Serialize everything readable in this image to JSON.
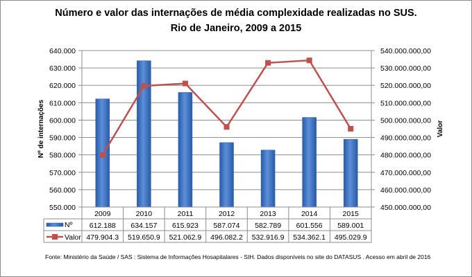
{
  "chart_data": {
    "type": "bar+line",
    "title": "Número e valor das internações de média complexidade realizadas no SUS.",
    "subtitle": "Rio de Janeiro, 2009 a 2015",
    "categories": [
      "2009",
      "2010",
      "2011",
      "2012",
      "2013",
      "2014",
      "2015"
    ],
    "ylabel_left": "Nº de internações",
    "ylabel_right": "Valor",
    "ylim_left": [
      550000,
      640000
    ],
    "ylim_right": [
      450000000,
      540000000
    ],
    "left_ticks": [
      "550.000",
      "560.000",
      "570.000",
      "580.000",
      "590.000",
      "600.000",
      "610.000",
      "620.000",
      "630.000",
      "640.000"
    ],
    "right_ticks": [
      "450.000.000,00",
      "460.000.000,00",
      "470.000.000,00",
      "480.000.000,00",
      "490.000.000,00",
      "500.000.000,00",
      "510.000.000,00",
      "520.000.000,00",
      "530.000.000,00",
      "540.000.000,00"
    ],
    "grid": true,
    "series": [
      {
        "name": "Nº",
        "type": "bar",
        "axis": "left",
        "color": "#3b6fc0",
        "values": [
          612188,
          634157,
          615923,
          587074,
          582789,
          601556,
          589001
        ],
        "labels": [
          "612.188",
          "634.157",
          "615.923",
          "587.074",
          "582.789",
          "601.556",
          "589.001"
        ]
      },
      {
        "name": "Valor",
        "type": "line",
        "axis": "right",
        "color": "#c0504d",
        "values": [
          479904300,
          519650900,
          521062900,
          496082200,
          532916900,
          534362100,
          495029900
        ],
        "labels": [
          "479.904.3",
          "519.650.9",
          "521.062.9",
          "496.082.2",
          "532.916.9",
          "534.362.1",
          "495.029.9"
        ]
      }
    ],
    "legend": "data-table",
    "source": "Fonte:  Ministério da Saúde  / SAS : Sistema de Informações Hosapitalares - SIH. Dados disponíveis no site do DATASUS . Acesso em abril de 2016"
  }
}
